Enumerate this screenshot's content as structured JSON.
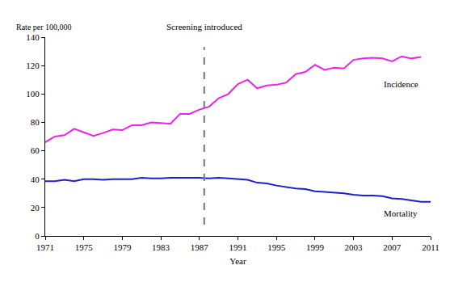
{
  "chart_data": {
    "type": "line",
    "x_label": "Year",
    "y_label": "Rate per 100,000",
    "x": [
      1971,
      1972,
      1973,
      1974,
      1975,
      1976,
      1977,
      1978,
      1979,
      1980,
      1981,
      1982,
      1983,
      1984,
      1985,
      1986,
      1987,
      1988,
      1989,
      1990,
      1991,
      1992,
      1993,
      1994,
      1995,
      1996,
      1997,
      1998,
      1999,
      2000,
      2001,
      2002,
      2003,
      2004,
      2005,
      2006,
      2007,
      2008,
      2009,
      2010,
      2011
    ],
    "series": [
      {
        "name": "Incidence",
        "color": "#ee22ee",
        "values": [
          66,
          70,
          71,
          75.5,
          73,
          70.5,
          72.5,
          75,
          74.5,
          78,
          78,
          80,
          79.5,
          79,
          86,
          86,
          89,
          91,
          97,
          100,
          107,
          110,
          104,
          106,
          106.5,
          108,
          114,
          115.5,
          120.5,
          117,
          118.5,
          118,
          124,
          125,
          125.5,
          125,
          123,
          126.5,
          125,
          126,
          null
        ]
      },
      {
        "name": "Mortality",
        "color": "#1f1fcc",
        "values": [
          38.5,
          38.5,
          39.5,
          38.5,
          40,
          40,
          39.5,
          40,
          40,
          40,
          41,
          40.5,
          40.5,
          41,
          41,
          41,
          41,
          40.5,
          41,
          40.5,
          40,
          39.5,
          37.5,
          37,
          35.5,
          34.5,
          33.5,
          33,
          31.5,
          31,
          30.5,
          30,
          29,
          28.5,
          28.5,
          28,
          26.5,
          26,
          25,
          24,
          24
        ]
      }
    ],
    "annotations": [
      {
        "text": "Screening introduced",
        "x": 1987.5,
        "y_from": 8,
        "y_to": 133,
        "line_style": "dashed"
      },
      {
        "text": "Incidence",
        "x": 2006,
        "y": 107
      },
      {
        "text": "Mortality",
        "x": 2006,
        "y": 16
      }
    ],
    "xlim": [
      1971,
      2011
    ],
    "xticks": [
      1971,
      1975,
      1979,
      1983,
      1987,
      1991,
      1995,
      1999,
      2003,
      2007,
      2011
    ],
    "ylim": [
      0,
      140
    ],
    "yticks": [
      0,
      20,
      40,
      60,
      80,
      100,
      120,
      140
    ],
    "grid": false
  }
}
